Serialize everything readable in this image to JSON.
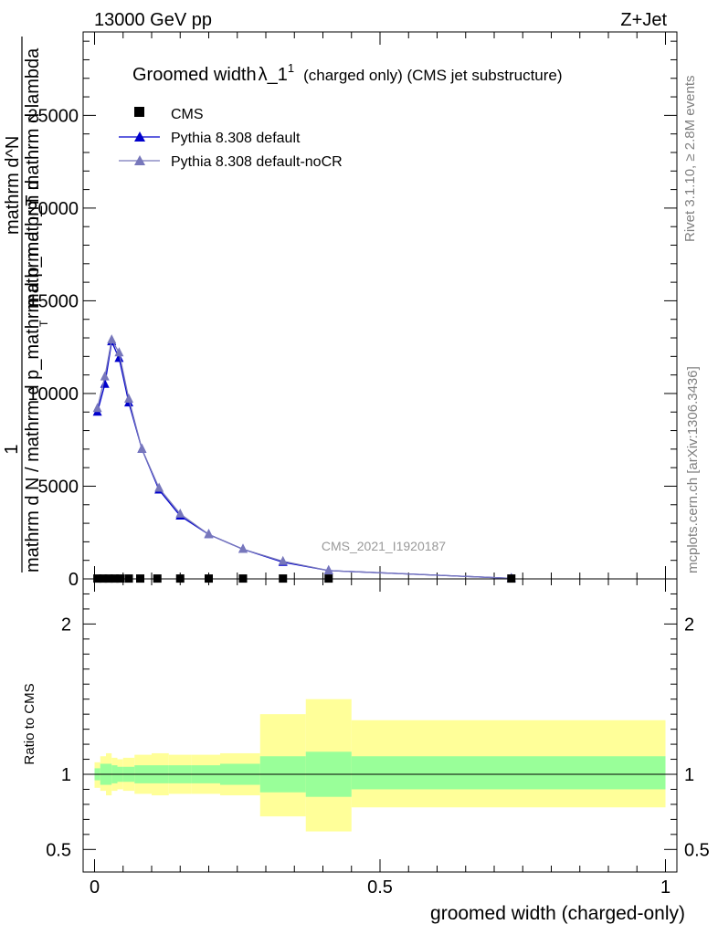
{
  "header": {
    "left": "13000 GeV pp",
    "right": "Z+Jet"
  },
  "side": {
    "rivet": "Rivet 3.1.10, ≥ 2.8M events",
    "mcplots": "mcplots.cern.ch [arXiv:1306.3436]"
  },
  "chart_data": [
    {
      "type": "scatter",
      "title_main": "Groomed width",
      "title_symbol": "λ_1",
      "title_sup": "1",
      "title_rest": "(charged only) (CMS jet substructure)",
      "watermark": "CMS_2021_I1920187",
      "ylabel_lines": [
        "1",
        "mathrm d N / mathrm d p_mathrm d p_mathrm d",
        "mathrm d^N",
        "mathrm d p_T mathrm d lambda"
      ],
      "ylabel_sub": "T",
      "xlim": [
        -0.02,
        1.02
      ],
      "ylim": [
        0,
        29500
      ],
      "yticks": [
        0,
        5000,
        10000,
        15000,
        20000,
        25000
      ],
      "ytick_labels": [
        "0",
        "5000",
        "10000",
        "15000",
        "20000",
        "25000"
      ],
      "legend": [
        {
          "label": "CMS",
          "color": "#000000",
          "marker": "square"
        },
        {
          "label": "Pythia 8.308 default",
          "color": "#0000cc",
          "marker": "triangle"
        },
        {
          "label": "Pythia 8.308 default-noCR",
          "color": "#7777bb",
          "marker": "triangle"
        }
      ],
      "series": [
        {
          "name": "CMS",
          "x": [
            0.005,
            0.015,
            0.025,
            0.035,
            0.045,
            0.06,
            0.08,
            0.11,
            0.15,
            0.2,
            0.26,
            0.33,
            0.41,
            0.73
          ],
          "y": [
            20,
            20,
            20,
            20,
            20,
            20,
            20,
            20,
            20,
            20,
            20,
            20,
            20,
            20
          ]
        },
        {
          "name": "Pythia 8.308 default",
          "x": [
            0.005,
            0.018,
            0.03,
            0.043,
            0.06,
            0.083,
            0.113,
            0.15,
            0.2,
            0.26,
            0.33,
            0.41,
            0.73
          ],
          "y": [
            9000,
            10500,
            12800,
            11900,
            9500,
            7000,
            4800,
            3400,
            2400,
            1600,
            900,
            450,
            30
          ]
        },
        {
          "name": "Pythia 8.308 default-noCR",
          "x": [
            0.005,
            0.018,
            0.03,
            0.043,
            0.06,
            0.083,
            0.113,
            0.15,
            0.2,
            0.26,
            0.33,
            0.41,
            0.73
          ],
          "y": [
            9200,
            10900,
            12900,
            12200,
            9700,
            7000,
            4900,
            3500,
            2400,
            1600,
            950,
            450,
            30
          ]
        }
      ]
    },
    {
      "type": "area",
      "ylabel": "Ratio to CMS",
      "xlabel": "groomed width (charged-only)",
      "xlim": [
        -0.02,
        1.02
      ],
      "ylim": [
        0.35,
        2.3
      ],
      "xticks": [
        0,
        0.5,
        1
      ],
      "xtick_labels": [
        "0",
        "0.5",
        "1"
      ],
      "yticks": [
        0.5,
        1,
        2
      ],
      "ytick_labels": [
        "0.5",
        "1",
        "2"
      ],
      "bins": [
        {
          "x0": 0.0,
          "x1": 0.01,
          "stat_lo": 0.96,
          "stat_hi": 1.04,
          "tot_lo": 0.91,
          "tot_hi": 1.08
        },
        {
          "x0": 0.01,
          "x1": 0.02,
          "stat_lo": 0.93,
          "stat_hi": 1.07,
          "tot_lo": 0.89,
          "tot_hi": 1.12
        },
        {
          "x0": 0.02,
          "x1": 0.03,
          "stat_lo": 0.93,
          "stat_hi": 1.07,
          "tot_lo": 0.86,
          "tot_hi": 1.14
        },
        {
          "x0": 0.03,
          "x1": 0.04,
          "stat_lo": 0.94,
          "stat_hi": 1.06,
          "tot_lo": 0.89,
          "tot_hi": 1.11
        },
        {
          "x0": 0.04,
          "x1": 0.05,
          "stat_lo": 0.95,
          "stat_hi": 1.05,
          "tot_lo": 0.9,
          "tot_hi": 1.1
        },
        {
          "x0": 0.05,
          "x1": 0.07,
          "stat_lo": 0.95,
          "stat_hi": 1.05,
          "tot_lo": 0.89,
          "tot_hi": 1.11
        },
        {
          "x0": 0.07,
          "x1": 0.1,
          "stat_lo": 0.94,
          "stat_hi": 1.06,
          "tot_lo": 0.87,
          "tot_hi": 1.13
        },
        {
          "x0": 0.1,
          "x1": 0.13,
          "stat_lo": 0.94,
          "stat_hi": 1.06,
          "tot_lo": 0.86,
          "tot_hi": 1.14
        },
        {
          "x0": 0.13,
          "x1": 0.17,
          "stat_lo": 0.94,
          "stat_hi": 1.06,
          "tot_lo": 0.87,
          "tot_hi": 1.13
        },
        {
          "x0": 0.17,
          "x1": 0.22,
          "stat_lo": 0.94,
          "stat_hi": 1.06,
          "tot_lo": 0.87,
          "tot_hi": 1.13
        },
        {
          "x0": 0.22,
          "x1": 0.29,
          "stat_lo": 0.93,
          "stat_hi": 1.07,
          "tot_lo": 0.86,
          "tot_hi": 1.14
        },
        {
          "x0": 0.29,
          "x1": 0.37,
          "stat_lo": 0.88,
          "stat_hi": 1.12,
          "tot_lo": 0.72,
          "tot_hi": 1.4
        },
        {
          "x0": 0.37,
          "x1": 0.45,
          "stat_lo": 0.85,
          "stat_hi": 1.15,
          "tot_lo": 0.62,
          "tot_hi": 1.5
        },
        {
          "x0": 0.45,
          "x1": 1.0,
          "stat_lo": 0.9,
          "stat_hi": 1.12,
          "tot_lo": 0.78,
          "tot_hi": 1.36
        }
      ],
      "colors": {
        "stat": "#99ff99",
        "total": "#ffff99",
        "line": "#000000"
      }
    }
  ]
}
